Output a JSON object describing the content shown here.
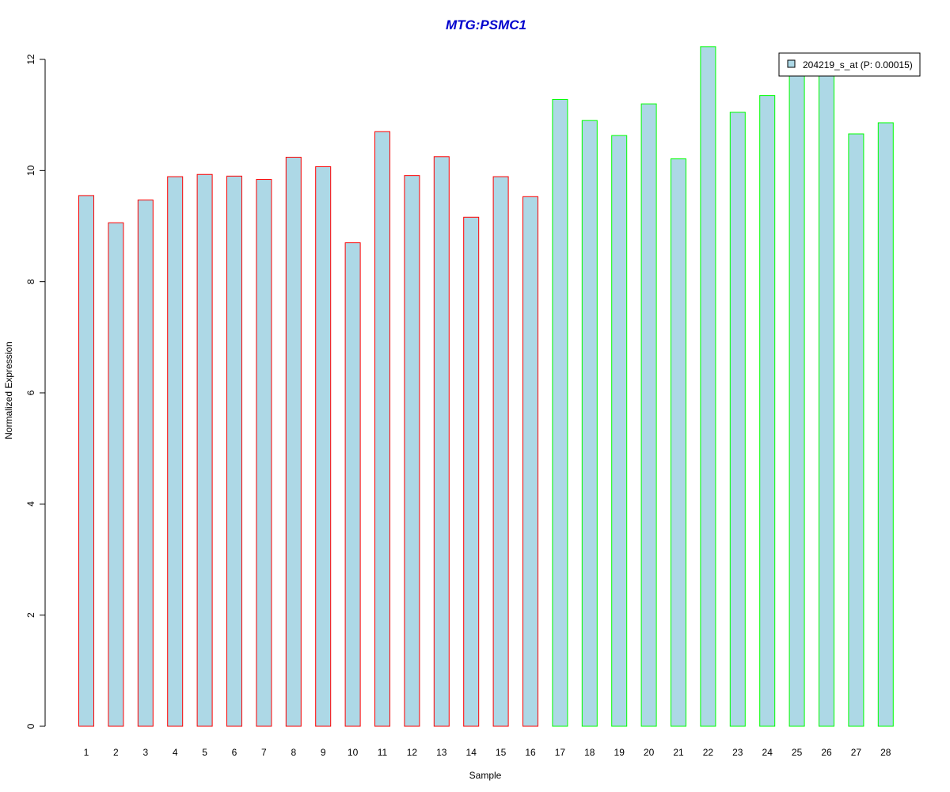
{
  "chart_data": {
    "type": "bar",
    "title": "MTG:PSMC1",
    "xlabel": "Sample",
    "ylabel": "Normalized Expression",
    "ylim": [
      0,
      12
    ],
    "yticks": [
      "0",
      "2",
      "4",
      "6",
      "8",
      "10",
      "12"
    ],
    "categories": [
      "1",
      "2",
      "3",
      "4",
      "5",
      "6",
      "7",
      "8",
      "9",
      "10",
      "11",
      "12",
      "13",
      "14",
      "15",
      "16",
      "17",
      "18",
      "19",
      "20",
      "21",
      "22",
      "23",
      "24",
      "25",
      "26",
      "27",
      "28"
    ],
    "series": [
      {
        "name": "204219_s_at (P: 0.00015)",
        "values": [
          9.55,
          9.06,
          9.47,
          9.89,
          9.93,
          9.9,
          9.84,
          10.24,
          10.07,
          8.7,
          10.7,
          9.91,
          10.25,
          9.16,
          9.89,
          9.53,
          11.28,
          10.9,
          10.63,
          11.2,
          10.21,
          12.23,
          11.05,
          11.35,
          11.72,
          11.75,
          10.66,
          10.86
        ]
      }
    ],
    "bar_fill": "#add8e6",
    "group_colors": [
      "#ff0000",
      "#00ff00"
    ],
    "groups": [
      1,
      1,
      1,
      1,
      1,
      1,
      1,
      1,
      1,
      1,
      1,
      1,
      1,
      1,
      1,
      1,
      2,
      2,
      2,
      2,
      2,
      2,
      2,
      2,
      2,
      2,
      2,
      2
    ],
    "title_color": "#0000cd",
    "legend": {
      "label": "204219_s_at (P: 0.00015)",
      "position": "top-right"
    },
    "grid": false
  }
}
